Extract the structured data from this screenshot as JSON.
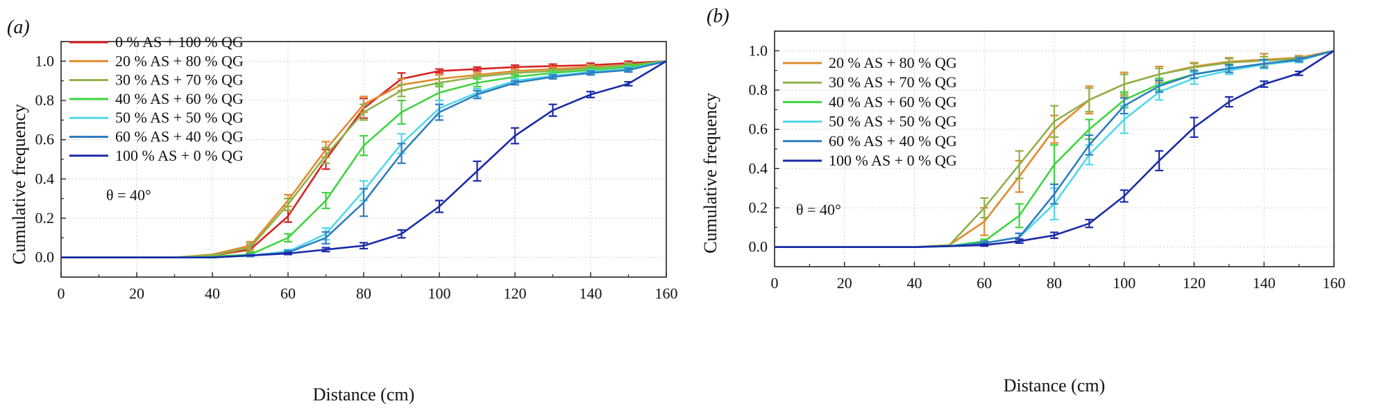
{
  "chart_data": [
    {
      "type": "line",
      "panel_label": "(a)",
      "xlabel": "Distance (cm)",
      "ylabel": "Cumulative frequency",
      "xlim": [
        0,
        160
      ],
      "ylim": [
        -0.1,
        1.1
      ],
      "xticks": [
        "0",
        "20",
        "40",
        "60",
        "80",
        "100",
        "120",
        "140",
        "160"
      ],
      "yticks": [
        "0.0",
        "0.2",
        "0.4",
        "0.6",
        "0.8",
        "1.0"
      ],
      "annotation": "θ = 40°",
      "series": [
        {
          "name": "0 % AS + 100 % QG",
          "color": "#d62020",
          "x": [
            0,
            10,
            20,
            30,
            40,
            50,
            60,
            70,
            80,
            90,
            100,
            110,
            120,
            130,
            140,
            150,
            160
          ],
          "y": [
            0,
            0,
            0,
            0,
            0.01,
            0.04,
            0.21,
            0.5,
            0.76,
            0.91,
            0.95,
            0.96,
            0.97,
            0.975,
            0.98,
            0.99,
            1.0
          ],
          "err": [
            0,
            0,
            0,
            0,
            0,
            0.02,
            0.03,
            0.05,
            0.05,
            0.03,
            0.01,
            0.01,
            0.01,
            0.01,
            0.01,
            0.01,
            0
          ]
        },
        {
          "name": "20 % AS + 80 % QG",
          "color": "#e08a2c",
          "x": [
            0,
            10,
            20,
            30,
            40,
            50,
            60,
            70,
            80,
            90,
            100,
            110,
            120,
            130,
            140,
            150,
            160
          ],
          "y": [
            0,
            0,
            0,
            0,
            0.015,
            0.06,
            0.29,
            0.55,
            0.78,
            0.88,
            0.91,
            0.93,
            0.95,
            0.96,
            0.97,
            0.98,
            1.0
          ],
          "err": [
            0,
            0,
            0,
            0,
            0,
            0.02,
            0.03,
            0.04,
            0.04,
            0.03,
            0.02,
            0.01,
            0.01,
            0.01,
            0.01,
            0.01,
            0
          ]
        },
        {
          "name": "30 % AS + 70 % QG",
          "color": "#8fb04a",
          "x": [
            0,
            10,
            20,
            30,
            40,
            50,
            60,
            70,
            80,
            90,
            100,
            110,
            120,
            130,
            140,
            150,
            160
          ],
          "y": [
            0,
            0,
            0,
            0,
            0.01,
            0.05,
            0.27,
            0.52,
            0.74,
            0.85,
            0.89,
            0.92,
            0.94,
            0.95,
            0.965,
            0.98,
            1.0
          ],
          "err": [
            0,
            0,
            0,
            0,
            0,
            0.02,
            0.03,
            0.04,
            0.04,
            0.03,
            0.02,
            0.01,
            0.01,
            0.01,
            0.01,
            0.01,
            0
          ]
        },
        {
          "name": "40 % AS + 60 % QG",
          "color": "#3fd43f",
          "x": [
            0,
            10,
            20,
            30,
            40,
            50,
            60,
            70,
            80,
            90,
            100,
            110,
            120,
            130,
            140,
            150,
            160
          ],
          "y": [
            0,
            0,
            0,
            0,
            0.005,
            0.015,
            0.1,
            0.29,
            0.57,
            0.74,
            0.84,
            0.89,
            0.92,
            0.94,
            0.955,
            0.97,
            1.0
          ],
          "err": [
            0,
            0,
            0,
            0,
            0,
            0.01,
            0.02,
            0.04,
            0.05,
            0.06,
            0.04,
            0.02,
            0.01,
            0.01,
            0.01,
            0.01,
            0
          ]
        },
        {
          "name": "50 % AS + 50 % QG",
          "color": "#4fd8ea",
          "x": [
            0,
            10,
            20,
            30,
            40,
            50,
            60,
            70,
            80,
            90,
            100,
            110,
            120,
            130,
            140,
            150,
            160
          ],
          "y": [
            0,
            0,
            0,
            0,
            0,
            0.01,
            0.03,
            0.12,
            0.34,
            0.58,
            0.76,
            0.84,
            0.9,
            0.925,
            0.945,
            0.96,
            1.0
          ],
          "err": [
            0,
            0,
            0,
            0,
            0,
            0.005,
            0.01,
            0.03,
            0.05,
            0.05,
            0.04,
            0.02,
            0.01,
            0.01,
            0.01,
            0.01,
            0
          ]
        },
        {
          "name": "60 % AS + 40 % QG",
          "color": "#2e7dc0",
          "x": [
            0,
            10,
            20,
            30,
            40,
            50,
            60,
            70,
            80,
            90,
            100,
            110,
            120,
            130,
            140,
            150,
            160
          ],
          "y": [
            0,
            0,
            0,
            0,
            0,
            0.01,
            0.025,
            0.1,
            0.28,
            0.53,
            0.74,
            0.83,
            0.89,
            0.92,
            0.94,
            0.955,
            1.0
          ],
          "err": [
            0,
            0,
            0,
            0,
            0,
            0.005,
            0.01,
            0.03,
            0.07,
            0.05,
            0.04,
            0.02,
            0.01,
            0.01,
            0.01,
            0.01,
            0
          ]
        },
        {
          "name": "100 % AS + 0 % QG",
          "color": "#1a2aa8",
          "x": [
            0,
            10,
            20,
            30,
            40,
            50,
            60,
            70,
            80,
            90,
            100,
            110,
            120,
            130,
            140,
            150,
            160
          ],
          "y": [
            0,
            0,
            0,
            0,
            0,
            0.01,
            0.02,
            0.04,
            0.06,
            0.12,
            0.26,
            0.44,
            0.62,
            0.75,
            0.83,
            0.885,
            1.0
          ],
          "err": [
            0,
            0,
            0,
            0,
            0,
            0,
            0.005,
            0.01,
            0.015,
            0.02,
            0.03,
            0.05,
            0.04,
            0.03,
            0.015,
            0.01,
            0
          ]
        }
      ]
    },
    {
      "type": "line",
      "panel_label": "(b)",
      "xlabel": "Distance (cm)",
      "ylabel": "Cumulative frequency",
      "xlim": [
        0,
        160
      ],
      "ylim": [
        -0.1,
        1.1
      ],
      "xticks": [
        "0",
        "20",
        "40",
        "60",
        "80",
        "100",
        "120",
        "140",
        "160"
      ],
      "yticks": [
        "0.0",
        "0.2",
        "0.4",
        "0.6",
        "0.8",
        "1.0"
      ],
      "annotation": "θ = 40°",
      "series": [
        {
          "name": "20 % AS + 80 % QG",
          "color": "#e08a2c",
          "x": [
            0,
            10,
            20,
            30,
            40,
            50,
            60,
            70,
            80,
            90,
            100,
            110,
            120,
            130,
            140,
            150,
            160
          ],
          "y": [
            0,
            0,
            0,
            0,
            0,
            0.01,
            0.13,
            0.36,
            0.6,
            0.75,
            0.83,
            0.88,
            0.92,
            0.945,
            0.955,
            0.965,
            1.0
          ],
          "err": [
            0,
            0,
            0,
            0,
            0,
            0,
            0.07,
            0.08,
            0.07,
            0.07,
            0.06,
            0.04,
            0.02,
            0.02,
            0.03,
            0.01,
            0
          ]
        },
        {
          "name": "30 % AS + 70 % QG",
          "color": "#8fb04a",
          "x": [
            0,
            10,
            20,
            30,
            40,
            50,
            60,
            70,
            80,
            90,
            100,
            110,
            120,
            130,
            140,
            150,
            160
          ],
          "y": [
            0,
            0,
            0,
            0,
            0,
            0.01,
            0.2,
            0.42,
            0.64,
            0.75,
            0.83,
            0.88,
            0.915,
            0.94,
            0.95,
            0.96,
            1.0
          ],
          "err": [
            0,
            0,
            0,
            0,
            0,
            0,
            0.05,
            0.07,
            0.08,
            0.06,
            0.05,
            0.03,
            0.02,
            0.02,
            0.02,
            0.01,
            0
          ]
        },
        {
          "name": "40 % AS + 60 % QG",
          "color": "#3fd43f",
          "x": [
            0,
            10,
            20,
            30,
            40,
            50,
            60,
            70,
            80,
            90,
            100,
            110,
            120,
            130,
            140,
            150,
            160
          ],
          "y": [
            0,
            0,
            0,
            0,
            0,
            0.005,
            0.03,
            0.16,
            0.42,
            0.6,
            0.75,
            0.83,
            0.88,
            0.91,
            0.93,
            0.95,
            1.0
          ],
          "err": [
            0,
            0,
            0,
            0,
            0,
            0,
            0.01,
            0.06,
            0.1,
            0.05,
            0.04,
            0.03,
            0.02,
            0.02,
            0.02,
            0.01,
            0
          ]
        },
        {
          "name": "50 % AS + 50 % QG",
          "color": "#4fd8ea",
          "x": [
            0,
            10,
            20,
            30,
            40,
            50,
            60,
            70,
            80,
            90,
            100,
            110,
            120,
            130,
            140,
            150,
            160
          ],
          "y": [
            0,
            0,
            0,
            0,
            0,
            0.005,
            0.02,
            0.05,
            0.22,
            0.47,
            0.65,
            0.79,
            0.86,
            0.9,
            0.93,
            0.95,
            1.0
          ],
          "err": [
            0,
            0,
            0,
            0,
            0,
            0,
            0.01,
            0.02,
            0.08,
            0.05,
            0.07,
            0.04,
            0.03,
            0.02,
            0.02,
            0.01,
            0
          ]
        },
        {
          "name": "60 % AS + 40 % QG",
          "color": "#2e7dc0",
          "x": [
            0,
            10,
            20,
            30,
            40,
            50,
            60,
            70,
            80,
            90,
            100,
            110,
            120,
            130,
            140,
            150,
            160
          ],
          "y": [
            0,
            0,
            0,
            0,
            0,
            0.005,
            0.02,
            0.05,
            0.27,
            0.52,
            0.72,
            0.82,
            0.88,
            0.91,
            0.935,
            0.955,
            1.0
          ],
          "err": [
            0,
            0,
            0,
            0,
            0,
            0,
            0.01,
            0.02,
            0.05,
            0.05,
            0.04,
            0.03,
            0.02,
            0.02,
            0.02,
            0.01,
            0
          ]
        },
        {
          "name": "100 % AS + 0 % QG",
          "color": "#1a2aa8",
          "x": [
            0,
            10,
            20,
            30,
            40,
            50,
            60,
            70,
            80,
            90,
            100,
            110,
            120,
            130,
            140,
            150,
            160
          ],
          "y": [
            0,
            0,
            0,
            0,
            0,
            0.005,
            0.01,
            0.03,
            0.06,
            0.12,
            0.26,
            0.44,
            0.61,
            0.74,
            0.83,
            0.885,
            1.0
          ],
          "err": [
            0,
            0,
            0,
            0,
            0,
            0,
            0.005,
            0.01,
            0.015,
            0.02,
            0.03,
            0.05,
            0.05,
            0.025,
            0.015,
            0.01,
            0
          ]
        }
      ]
    }
  ]
}
